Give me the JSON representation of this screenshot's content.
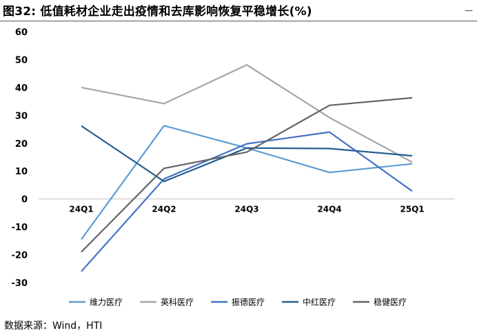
{
  "figure": {
    "title": "图32:  低值耗材企业走出疫情和去库影响恢复平稳增长(%)",
    "source": "数据来源：Wind，HTI"
  },
  "chart_data": {
    "type": "line",
    "categories": [
      "24Q1",
      "24Q2",
      "24Q3",
      "24Q4",
      "25Q1"
    ],
    "ylim": [
      -30,
      60
    ],
    "yticks": [
      -30,
      -20,
      -10,
      0,
      10,
      20,
      30,
      40,
      50,
      60
    ],
    "grid": false,
    "legend_position": "bottom",
    "series": [
      {
        "name": "维力医疗",
        "color": "#5B9BD5",
        "values": [
          -14.5,
          26.3,
          18.3,
          9.5,
          12.6
        ]
      },
      {
        "name": "英科医疗",
        "color": "#A5A5A5",
        "values": [
          40.0,
          34.2,
          48.1,
          29.2,
          13.2
        ]
      },
      {
        "name": "振德医疗",
        "color": "#4472C4",
        "values": [
          -26.0,
          7.2,
          19.8,
          24.0,
          2.8
        ]
      },
      {
        "name": "中红医疗",
        "color": "#255E91",
        "values": [
          26.2,
          6.3,
          18.3,
          18.1,
          15.5
        ]
      },
      {
        "name": "稳健医疗",
        "color": "#636363",
        "values": [
          -19.0,
          11.0,
          16.8,
          33.6,
          36.3
        ]
      }
    ]
  }
}
